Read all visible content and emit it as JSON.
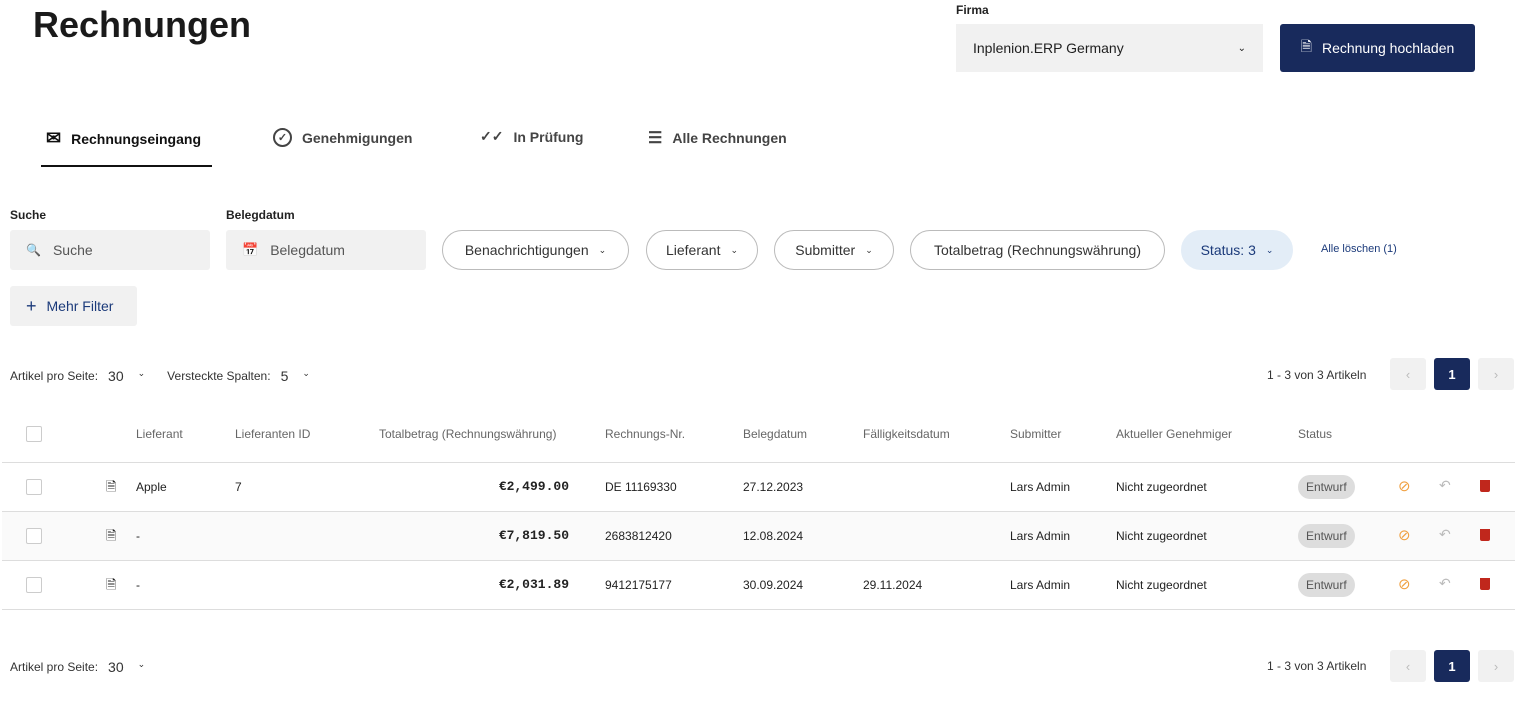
{
  "header": {
    "title": "Rechnungen",
    "firma_label": "Firma",
    "firma_value": "Inplenion.ERP Germany",
    "upload_button": "Rechnung hochladen"
  },
  "tabs": [
    {
      "label": "Rechnungseingang",
      "icon": "mail-icon",
      "active": true
    },
    {
      "label": "Genehmigungen",
      "icon": "check-circle-icon"
    },
    {
      "label": "In Prüfung",
      "icon": "double-check-icon"
    },
    {
      "label": "Alle Rechnungen",
      "icon": "list-icon"
    }
  ],
  "filters": {
    "search_label": "Suche",
    "search_placeholder": "Suche",
    "date_label": "Belegdatum",
    "date_placeholder": "Belegdatum",
    "pills": [
      "Benachrichtigungen",
      "Lieferant",
      "Submitter",
      "Totalbetrag (Rechnungswährung)",
      "Status: 3"
    ],
    "clear_all": "Alle löschen (1)",
    "more_filters": "Mehr Filter"
  },
  "pagination": {
    "per_page_label": "Artikel pro Seite:",
    "per_page": "30",
    "hidden_cols_label": "Versteckte Spalten:",
    "hidden_cols": "5",
    "range": "1 - 3 von 3 Artikeln",
    "page": "1"
  },
  "table": {
    "columns": [
      "Lieferant",
      "Lieferanten ID",
      "Totalbetrag (Rechnungswährung)",
      "Rechnungs-Nr.",
      "Belegdatum",
      "Fälligkeitsdatum",
      "Submitter",
      "Aktueller Genehmiger",
      "Status"
    ],
    "rows": [
      {
        "lieferant": "Apple",
        "id": "7",
        "total": "€2,499.00",
        "nr": "DE 11169330",
        "beleg": "27.12.2023",
        "faellig": "",
        "submitter": "Lars Admin",
        "genehmiger": "Nicht zugeordnet",
        "status": "Entwurf"
      },
      {
        "lieferant": "-",
        "id": "",
        "total": "€7,819.50",
        "nr": "2683812420",
        "beleg": "12.08.2024",
        "faellig": "",
        "submitter": "Lars Admin",
        "genehmiger": "Nicht zugeordnet",
        "status": "Entwurf"
      },
      {
        "lieferant": "-",
        "id": "",
        "total": "€2,031.89",
        "nr": "9412175177",
        "beleg": "30.09.2024",
        "faellig": "29.11.2024",
        "submitter": "Lars Admin",
        "genehmiger": "Nicht zugeordnet",
        "status": "Entwurf"
      }
    ]
  },
  "colors": {
    "primary": "#182a5c",
    "reject": "#f0a040",
    "delete": "#c0271c"
  }
}
